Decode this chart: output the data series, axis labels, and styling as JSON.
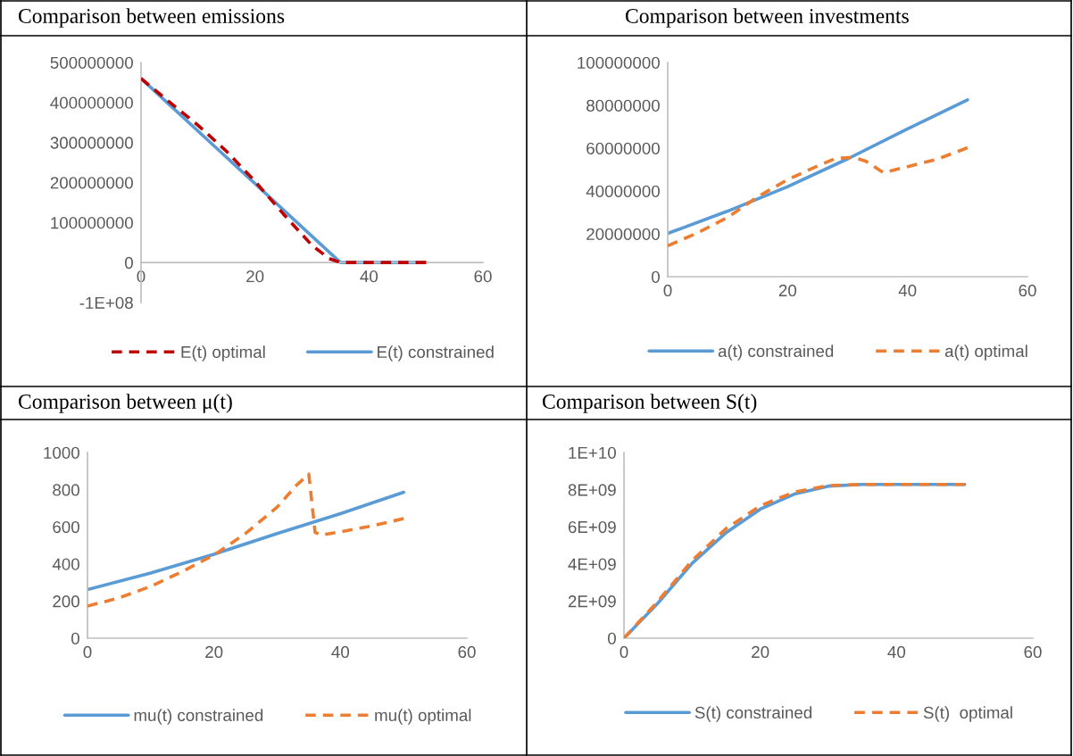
{
  "chart_data": [
    {
      "type": "line",
      "title": "Comparison between emissions",
      "x": [
        0,
        5,
        10,
        15,
        20,
        25,
        30,
        33,
        35,
        40,
        45,
        50
      ],
      "xlim": [
        0,
        60
      ],
      "xticks": [
        0,
        20,
        40,
        60
      ],
      "ylim": [
        -100000000,
        500000000
      ],
      "yticks": [
        {
          "value": -100000000,
          "label": "-1E+08"
        },
        0,
        100000000,
        200000000,
        300000000,
        400000000,
        500000000
      ],
      "legend": "bottom",
      "grid": false,
      "series": [
        {
          "name": "E(t) optimal",
          "color": "#c00000",
          "line_style": "dashed",
          "values": [
            460000000,
            401000000,
            343000000,
            278000000,
            203000000,
            121000000,
            43000000,
            10000000,
            0,
            0,
            0,
            0
          ]
        },
        {
          "name": "E(t) constrained",
          "color": "#5b9bd5",
          "line_style": "solid",
          "x": [
            0,
            35,
            40,
            45,
            50
          ],
          "values": [
            460000000,
            0,
            0,
            0,
            0
          ]
        }
      ]
    },
    {
      "type": "line",
      "title": "Comparison between investments",
      "xlim": [
        0,
        60
      ],
      "xticks": [
        0,
        20,
        40,
        60
      ],
      "ylim": [
        0,
        100000000
      ],
      "yticks": [
        0,
        20000000,
        40000000,
        60000000,
        80000000,
        100000000
      ],
      "legend": "bottom",
      "grid": false,
      "series": [
        {
          "name": "a(t) constrained",
          "color": "#5b9bd5",
          "line_style": "solid",
          "x": [
            0,
            10,
            20,
            30,
            40,
            50
          ],
          "values": [
            20200000,
            30600000,
            42000000,
            55000000,
            69000000,
            82600000
          ]
        },
        {
          "name": "a(t) optimal",
          "color": "#ed7d31",
          "line_style": "dashed",
          "x": [
            0,
            5,
            10,
            15,
            20,
            25,
            28,
            31,
            33,
            36,
            40,
            45,
            50
          ],
          "values": [
            14400000,
            20500000,
            27700000,
            37300000,
            45300000,
            51700000,
            55200000,
            55700000,
            54000000,
            48500000,
            51400000,
            54900000,
            60200000
          ]
        }
      ]
    },
    {
      "type": "line",
      "title": "Comparison between μ(t)",
      "xlim": [
        0,
        60
      ],
      "xticks": [
        0,
        20,
        40,
        60
      ],
      "ylim": [
        0,
        1000
      ],
      "yticks": [
        0,
        200,
        400,
        600,
        800,
        1000
      ],
      "legend": "bottom",
      "grid": false,
      "series": [
        {
          "name": "mu(t) constrained",
          "color": "#5b9bd5",
          "line_style": "solid",
          "x": [
            0,
            10,
            20,
            30,
            40,
            50
          ],
          "values": [
            262,
            351,
            452,
            564,
            671,
            786
          ]
        },
        {
          "name": "mu(t) optimal",
          "color": "#ed7d31",
          "line_style": "dashed",
          "x": [
            0,
            5,
            10,
            15,
            20,
            25,
            30,
            33,
            35,
            36,
            37,
            40,
            45,
            50
          ],
          "values": [
            173,
            217,
            279,
            359,
            448,
            564,
            706,
            822,
            884,
            570,
            555,
            573,
            605,
            644
          ]
        }
      ]
    },
    {
      "type": "line",
      "title": "Comparison between S(t)",
      "xlim": [
        0,
        60
      ],
      "xticks": [
        0,
        20,
        40,
        60
      ],
      "ylim": [
        0,
        10000000000
      ],
      "yticks": [
        0,
        {
          "value": 2000000000,
          "label": "2E+09"
        },
        {
          "value": 4000000000,
          "label": "4E+09"
        },
        {
          "value": 6000000000,
          "label": "6E+09"
        },
        {
          "value": 8000000000,
          "label": "8E+09"
        },
        {
          "value": 10000000000,
          "label": "1E+10"
        }
      ],
      "legend": "bottom",
      "grid": false,
      "series": [
        {
          "name": "S(t) constrained",
          "color": "#5b9bd5",
          "line_style": "solid",
          "x": [
            0,
            5,
            10,
            15,
            20,
            25,
            30,
            35,
            40,
            45,
            50
          ],
          "values": [
            0,
            1900000000,
            4030000000,
            5690000000,
            6950000000,
            7760000000,
            8190000000,
            8280000000,
            8280000000,
            8280000000,
            8280000000
          ]
        },
        {
          "name": "S(t)  optimal",
          "color": "#ed7d31",
          "line_style": "dashed",
          "x": [
            0,
            5,
            10,
            15,
            20,
            25,
            30,
            35,
            40,
            45,
            50
          ],
          "values": [
            0,
            2000000000,
            4180000000,
            5910000000,
            7130000000,
            7870000000,
            8220000000,
            8280000000,
            8280000000,
            8280000000,
            8280000000
          ]
        }
      ]
    }
  ]
}
